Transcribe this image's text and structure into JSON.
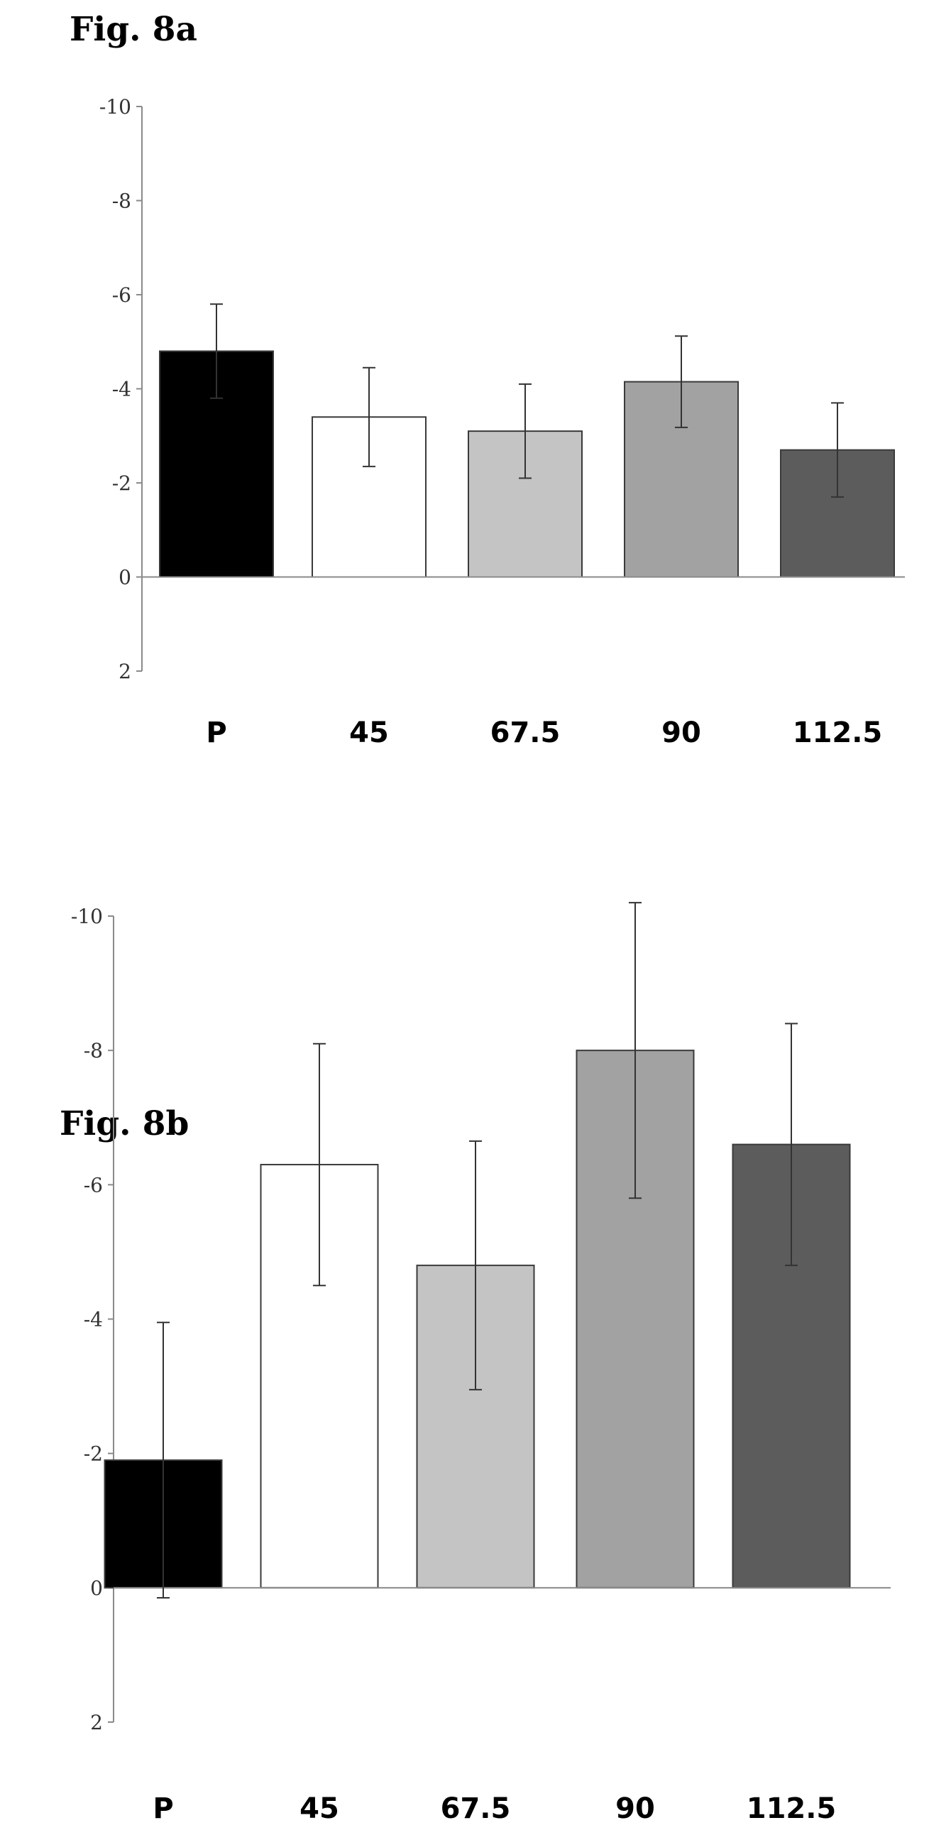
{
  "chart_data": [
    {
      "type": "bar",
      "title": "Fig. 8a",
      "categories": [
        "P",
        "45",
        "67.5",
        "90",
        "112.5"
      ],
      "values": [
        -4.8,
        -3.4,
        -3.1,
        -4.15,
        -2.7
      ],
      "errors": [
        1.0,
        1.05,
        1.0,
        0.97,
        1.0
      ],
      "bar_colors": [
        "#000000",
        "#ffffff",
        "#c4c4c4",
        "#a2a2a2",
        "#5c5c5c"
      ],
      "y_ticks": [
        "-10",
        "-8",
        "-6",
        "-4",
        "-2",
        "0",
        "2"
      ],
      "ylim": [
        2,
        -10
      ],
      "xlabel": "",
      "ylabel": "",
      "grid": false,
      "legend": "none"
    },
    {
      "type": "bar",
      "title": "Fig. 8b",
      "categories": [
        "P",
        "45",
        "67.5",
        "90",
        "112.5"
      ],
      "values": [
        -1.9,
        -6.3,
        -4.8,
        -8.0,
        -6.6
      ],
      "errors": [
        2.05,
        1.8,
        1.85,
        2.2,
        1.8
      ],
      "bar_colors": [
        "#000000",
        "#ffffff",
        "#c4c4c4",
        "#a2a2a2",
        "#5c5c5c"
      ],
      "y_ticks": [
        "-10",
        "-8",
        "-6",
        "-4",
        "-2",
        "0",
        "2"
      ],
      "ylim": [
        2,
        -10
      ],
      "xlabel": "",
      "ylabel": "",
      "grid": false,
      "legend": "none"
    }
  ]
}
